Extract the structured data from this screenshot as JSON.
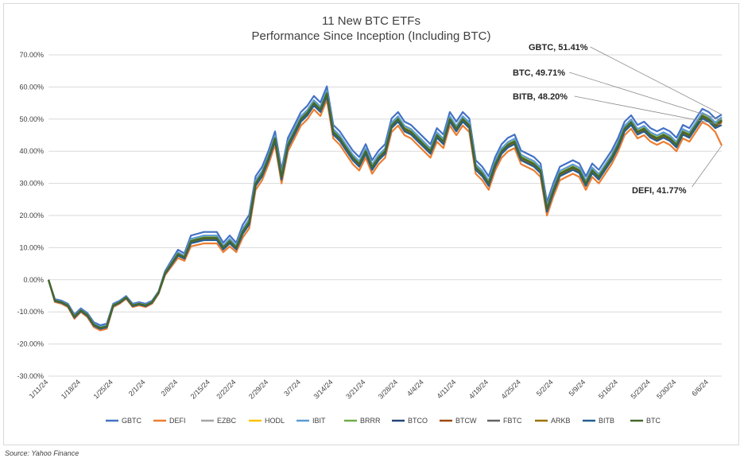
{
  "chart_data": {
    "type": "line",
    "title": [
      "11 New BTC ETFs",
      "Performance Since Inception (Including BTC)"
    ],
    "ylim": [
      -30,
      70
    ],
    "yticks": [
      70,
      60,
      50,
      40,
      30,
      20,
      10,
      0,
      -10,
      -20,
      -30
    ],
    "ytick_labels": [
      "70.00%",
      "60.00%",
      "50.00%",
      "40.00%",
      "30.00%",
      "20.00%",
      "10.00%",
      "0.00%",
      "-10.00%",
      "-20.00%",
      "-30.00%"
    ],
    "x_tick_labels": [
      "1/11/24",
      "1/18/24",
      "1/25/24",
      "2/1/24",
      "2/8/24",
      "2/15/24",
      "2/22/24",
      "2/29/24",
      "3/7/24",
      "3/14/24",
      "3/21/24",
      "3/28/24",
      "4/4/24",
      "4/11/24",
      "4/18/24",
      "4/25/24",
      "5/2/24",
      "5/9/24",
      "5/16/24",
      "5/23/24",
      "5/30/24",
      "6/6/24"
    ],
    "grid": "horizontal",
    "legend_position": "bottom",
    "base_series": {
      "x": [
        "1/11/24",
        "1/12/24",
        "1/15/24",
        "1/16/24",
        "1/17/24",
        "1/18/24",
        "1/19/24",
        "1/22/24",
        "1/23/24",
        "1/24/24",
        "1/25/24",
        "1/26/24",
        "1/29/24",
        "1/30/24",
        "1/31/24",
        "2/1/24",
        "2/2/24",
        "2/5/24",
        "2/6/24",
        "2/7/24",
        "2/8/24",
        "2/9/24",
        "2/12/24",
        "2/13/24",
        "2/14/24",
        "2/15/24",
        "2/16/24",
        "2/20/24",
        "2/21/24",
        "2/22/24",
        "2/23/24",
        "2/26/24",
        "2/27/24",
        "2/28/24",
        "2/29/24",
        "3/1/24",
        "3/4/24",
        "3/5/24",
        "3/6/24",
        "3/7/24",
        "3/8/24",
        "3/11/24",
        "3/12/24",
        "3/13/24",
        "3/14/24",
        "3/15/24",
        "3/18/24",
        "3/19/24",
        "3/20/24",
        "3/21/24",
        "3/22/24",
        "3/25/24",
        "3/26/24",
        "3/27/24",
        "3/28/24",
        "4/1/24",
        "4/2/24",
        "4/3/24",
        "4/4/24",
        "4/5/24",
        "4/8/24",
        "4/9/24",
        "4/10/24",
        "4/11/24",
        "4/12/24",
        "4/15/24",
        "4/16/24",
        "4/17/24",
        "4/18/24",
        "4/19/24",
        "4/22/24",
        "4/23/24",
        "4/24/24",
        "4/25/24",
        "4/26/24",
        "4/29/24",
        "4/30/24",
        "5/1/24",
        "5/2/24",
        "5/3/24",
        "5/6/24",
        "5/7/24",
        "5/8/24",
        "5/9/24",
        "5/10/24",
        "5/13/24",
        "5/14/24",
        "5/15/24",
        "5/16/24",
        "5/17/24",
        "5/20/24",
        "5/21/24",
        "5/22/24",
        "5/23/24",
        "5/24/24",
        "5/28/24",
        "5/29/24",
        "5/30/24",
        "5/31/24",
        "6/3/24",
        "6/4/24",
        "6/5/24",
        "6/6/24",
        "6/7/24",
        "6/10/24"
      ],
      "values": [
        0,
        -6.5,
        -7,
        -8,
        -11.5,
        -9.5,
        -11,
        -14,
        -15,
        -14.5,
        -8,
        -7,
        -5.5,
        -8,
        -7.5,
        -8,
        -7,
        -4,
        2,
        5,
        8,
        7,
        12,
        12.5,
        13,
        13,
        13,
        10,
        12,
        10,
        15,
        18,
        30,
        33,
        38,
        44,
        32,
        42,
        46,
        50,
        52,
        55,
        53,
        58,
        46,
        44,
        41,
        38,
        36,
        40,
        35,
        38,
        40,
        48,
        50,
        47,
        46,
        44,
        42,
        40,
        45,
        43,
        50,
        47,
        50,
        48,
        35,
        33,
        30,
        36,
        40,
        42,
        43,
        38,
        37,
        36,
        34,
        22,
        28,
        33,
        34,
        35,
        34,
        30,
        34,
        32,
        35,
        38,
        42,
        47,
        49,
        46,
        47,
        45,
        44,
        45,
        44,
        42,
        46,
        45,
        48,
        51,
        50,
        48,
        49.7
      ]
    },
    "series": [
      {
        "name": "GBTC",
        "color": "#4472C4",
        "offset": 2.2,
        "end_value": 51.41
      },
      {
        "name": "DEFI",
        "color": "#ED7D31",
        "offset": -2.0,
        "end_value": 41.77
      },
      {
        "name": "EZBC",
        "color": "#A5A5A5",
        "offset": 0.5
      },
      {
        "name": "HODL",
        "color": "#FFC000",
        "offset": 0.3
      },
      {
        "name": "IBIT",
        "color": "#5B9BD5",
        "offset": 0.9
      },
      {
        "name": "BRRR",
        "color": "#70AD47",
        "offset": 0.2
      },
      {
        "name": "BTCO",
        "color": "#264478",
        "offset": -0.3
      },
      {
        "name": "BTCW",
        "color": "#9E480E",
        "offset": -0.6
      },
      {
        "name": "FBTC",
        "color": "#636363",
        "offset": 0.0
      },
      {
        "name": "ARKB",
        "color": "#997300",
        "offset": -0.1
      },
      {
        "name": "BITB",
        "color": "#255E91",
        "offset": -0.8,
        "end_value": 48.2
      },
      {
        "name": "BTC",
        "color": "#43682B",
        "offset": 0.0,
        "end_value": 49.71
      }
    ],
    "callouts": [
      {
        "series": "GBTC",
        "text": "GBTC, 51.41%"
      },
      {
        "series": "BTC",
        "text": "BTC, 49.71%"
      },
      {
        "series": "BITB",
        "text": "BITB, 48.20%"
      },
      {
        "series": "DEFI",
        "text": "DEFI, 41.77%"
      }
    ]
  },
  "source_note": "Source: Yahoo Finance"
}
